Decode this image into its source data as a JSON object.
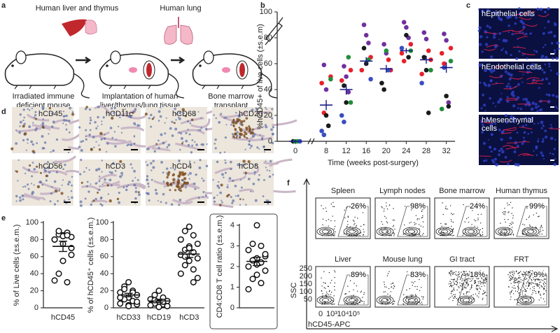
{
  "panel_letters": [
    "a",
    "b",
    "c",
    "d",
    "e",
    "f"
  ],
  "panel_a": {
    "organ_labels": [
      "Human liver and thymus",
      "Human lung"
    ],
    "captions": [
      [
        "Irradiated immune",
        "deficient mouse"
      ],
      [
        "Implantation of human",
        "liver/thymus/lung tissue"
      ],
      [
        "Bone marrow",
        "transplant"
      ]
    ]
  },
  "panel_c": {
    "labels": [
      [
        "hEpithelial cells"
      ],
      [
        "hEndothelial cells"
      ],
      [
        "hMesenchymal",
        "cells"
      ]
    ]
  },
  "panel_d": {
    "labels": [
      "hCD45",
      "hCD11c",
      "hCD68",
      "hCD20",
      "hCD56",
      "hCD3",
      "hCD4",
      "hCD8"
    ]
  },
  "chart_data": [
    {
      "type": "scatter",
      "ylabel": "%hCD45+ of live cells (±s.e.m)",
      "xlabel": "Time (weeks post-surgery)",
      "categories": [
        "0",
        "8",
        "12",
        "16",
        "20",
        "24",
        "28",
        "32"
      ],
      "ylim": [
        0,
        100
      ],
      "yticks": [
        0,
        20,
        40,
        60,
        80,
        100
      ],
      "series": [
        {
          "color": "#7030a0",
          "x": [
            "8",
            "8",
            "8",
            "12",
            "12",
            "12",
            "16",
            "16",
            "16",
            "20",
            "20",
            "24",
            "24",
            "24",
            "28",
            "28",
            "32",
            "32",
            "32"
          ],
          "values": [
            59,
            40,
            12,
            58,
            50,
            38,
            90,
            82,
            76,
            75,
            68,
            92,
            88,
            80,
            84,
            79,
            83,
            78,
            30
          ]
        },
        {
          "color": "#e8202a",
          "x": [
            "8",
            "8",
            "8",
            "12",
            "12",
            "16",
            "16",
            "20",
            "20",
            "24",
            "24",
            "24",
            "28",
            "28",
            "28",
            "32",
            "32",
            "32"
          ],
          "values": [
            50,
            45,
            22,
            55,
            47,
            65,
            55,
            63,
            55,
            75,
            68,
            62,
            70,
            63,
            52,
            72,
            68,
            60
          ]
        },
        {
          "color": "#1a1a1a",
          "x": [
            "0",
            "8",
            "8",
            "12",
            "12",
            "16",
            "16",
            "20",
            "20",
            "24",
            "24",
            "28",
            "28",
            "28",
            "32",
            "32"
          ],
          "values": [
            0,
            20,
            12,
            43,
            30,
            72,
            60,
            45,
            40,
            82,
            65,
            65,
            55,
            22,
            35,
            27
          ]
        },
        {
          "color": "#1f8f3a",
          "x": [
            "0",
            "0",
            "8",
            "12",
            "12",
            "16",
            "20",
            "24",
            "28",
            "32",
            "32"
          ],
          "values": [
            0,
            0,
            48,
            65,
            30,
            63,
            70,
            70,
            55,
            62,
            25
          ]
        },
        {
          "color": "#3a4fc0",
          "x": [
            "0",
            "8",
            "8",
            "12",
            "12",
            "16",
            "20",
            "24",
            "28",
            "32"
          ],
          "values": [
            0,
            8,
            5,
            20,
            15,
            48,
            55,
            72,
            45,
            57
          ]
        }
      ],
      "mean": [
        0,
        28,
        40,
        62,
        56,
        70,
        63,
        57
      ],
      "sem": [
        1,
        4,
        4,
        3,
        3,
        2,
        3,
        4
      ]
    },
    {
      "type": "dotplot",
      "ylabel": "% of Live cells (±s.e.m.)",
      "categories": [
        "hCD45"
      ],
      "ylim": [
        0,
        100
      ],
      "yticks": [
        0,
        20,
        40,
        60,
        80,
        100
      ],
      "groups": [
        {
          "values": [
            85,
            86,
            88,
            80,
            83,
            84,
            90,
            85,
            80,
            62,
            55,
            40,
            30,
            32,
            70,
            75
          ],
          "mean": 72,
          "sem": 6
        }
      ]
    },
    {
      "type": "dotplot",
      "ylabel": "% of hCD45⁺ cells (±s.e.m.)",
      "categories": [
        "hCD33",
        "hCD19",
        "hCD3"
      ],
      "ylim": [
        0,
        100
      ],
      "yticks": [
        0,
        20,
        40,
        60,
        80,
        100
      ],
      "groups": [
        {
          "values": [
            30,
            25,
            20,
            18,
            15,
            12,
            10,
            8,
            5,
            4,
            3,
            22,
            18,
            12,
            7,
            2
          ],
          "mean": 15,
          "sem": 2
        },
        {
          "values": [
            20,
            15,
            12,
            10,
            8,
            6,
            5,
            4,
            3,
            2,
            1,
            9,
            7
          ],
          "mean": 8,
          "sem": 2
        },
        {
          "values": [
            95,
            90,
            85,
            80,
            75,
            72,
            68,
            65,
            62,
            58,
            55,
            50,
            45,
            40,
            35,
            70,
            60,
            30
          ],
          "mean": 63,
          "sem": 4
        }
      ]
    },
    {
      "type": "dotplot",
      "ylabel": "CD4:CD8 T cell ratio (±s.e.m.)",
      "categories": [
        null
      ],
      "ylim": [
        0,
        4
      ],
      "yticks": [
        0,
        1,
        2,
        3,
        4
      ],
      "groups": [
        {
          "values": [
            4.0,
            3.1,
            3.0,
            2.8,
            2.5,
            2.4,
            2.3,
            2.2,
            2.0,
            1.8,
            1.6,
            1.4,
            1.2,
            0.9,
            2.6,
            2.1
          ],
          "mean": 2.25,
          "sem": 0.2
        }
      ]
    }
  ],
  "panel_f": {
    "plots": [
      {
        "tissue": "Spleen",
        "percent": "26%"
      },
      {
        "tissue": "Lymph nodes",
        "percent": "98%"
      },
      {
        "tissue": "Bone marrow",
        "percent": "24%"
      },
      {
        "tissue": "Human thymus",
        "percent": "99%"
      },
      {
        "tissue": "Liver",
        "percent": "89%"
      },
      {
        "tissue": "Mouse lung",
        "percent": "83%"
      },
      {
        "tissue": "GI tract",
        "percent": "18%"
      },
      {
        "tissue": "FRT",
        "percent": "9%"
      }
    ],
    "y_label": "SSC",
    "x_label": "hCD45-APC",
    "yticks": [
      250,
      200,
      150,
      100,
      50
    ],
    "xticks": [
      "0",
      "10³",
      "10⁴",
      "10⁵"
    ]
  }
}
